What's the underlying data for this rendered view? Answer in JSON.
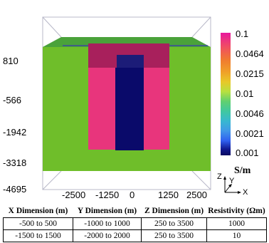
{
  "figure": {
    "y_ticks": [
      "810",
      "-566",
      "-1942",
      "-3318",
      "-4695"
    ],
    "x_ticks": [
      "-2500",
      "-1250",
      "0",
      "1250",
      "2500"
    ]
  },
  "colorbar": {
    "labels": [
      "0.1",
      "0.0464",
      "0.0215",
      "0.01",
      "0.0046",
      "0.0021",
      "0.001"
    ],
    "unit": "S/m",
    "colors": [
      "#e8189c",
      "#f05060",
      "#f07a30",
      "#f0a028",
      "#e8c828",
      "#d8e038",
      "#b8e040",
      "#88d850",
      "#60d070",
      "#40c8a0",
      "#38b8d0",
      "#4098e8",
      "#3060f0",
      "#2030d0",
      "#101890",
      "#0a0a60"
    ]
  },
  "triad": {
    "z": "Z",
    "y": "Y",
    "x": "X"
  },
  "table": {
    "headers": [
      "X Dimension (m)",
      "Y Dimension (m)",
      "Z Dimension (m)",
      "Resistivity (Ωm)"
    ],
    "rows": [
      [
        "-500 to 500",
        "-1000 to 1000",
        "250 to 3500",
        "1000"
      ],
      [
        "-1500 to 1500",
        "-2000 to 2000",
        "250 to 3500",
        "10"
      ]
    ]
  },
  "colors": {
    "background_block": "#6fbe2a",
    "top_face": "#4aa23a",
    "middle_block": "#e8357c",
    "middle_top": "#a8205c",
    "inner_block": "#0a0a6a",
    "inner_top": "#1c1c78",
    "wireframe": "#b8b8c8"
  }
}
